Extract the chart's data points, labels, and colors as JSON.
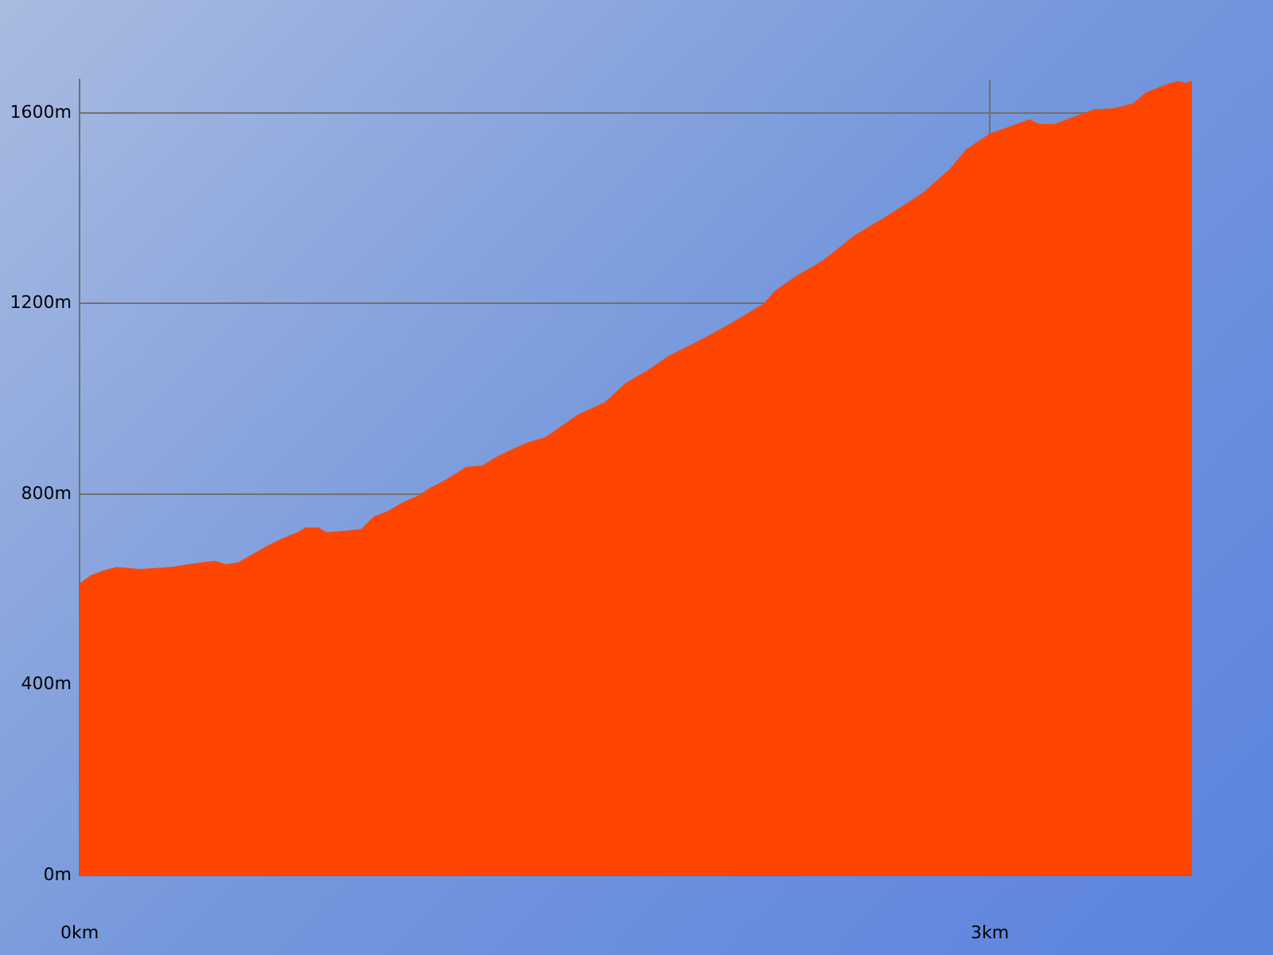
{
  "chart_data": {
    "type": "area",
    "x": [
      0,
      0.037,
      0.079,
      0.121,
      0.199,
      0.299,
      0.404,
      0.446,
      0.483,
      0.524,
      0.551,
      0.614,
      0.666,
      0.719,
      0.745,
      0.787,
      0.813,
      0.876,
      0.928,
      0.97,
      1.012,
      1.065,
      1.117,
      1.154,
      1.206,
      1.274,
      1.327,
      1.379,
      1.469,
      1.537,
      1.642,
      1.731,
      1.799,
      1.872,
      1.941,
      2.045,
      2.15,
      2.255,
      2.292,
      2.36,
      2.449,
      2.554,
      2.659,
      2.78,
      2.869,
      2.921,
      3.0,
      3.058,
      3.131,
      3.163,
      3.215,
      3.267,
      3.341,
      3.409,
      3.472,
      3.514,
      3.582,
      3.619,
      3.645,
      3.666
    ],
    "values": [
      613,
      630,
      640,
      647,
      643,
      647,
      657,
      660,
      653,
      657,
      667,
      690,
      707,
      720,
      730,
      730,
      720,
      723,
      727,
      753,
      763,
      783,
      797,
      813,
      830,
      857,
      860,
      880,
      907,
      920,
      967,
      993,
      1033,
      1060,
      1090,
      1123,
      1160,
      1200,
      1227,
      1257,
      1290,
      1343,
      1383,
      1433,
      1483,
      1523,
      1557,
      1570,
      1587,
      1577,
      1577,
      1590,
      1607,
      1610,
      1620,
      1643,
      1660,
      1667,
      1663,
      1667
    ],
    "color": "#ff4500",
    "xlim": [
      0,
      3.666
    ],
    "xticks": [
      {
        "value": 0,
        "label": "0km"
      },
      {
        "value": 3,
        "label": "3km"
      }
    ],
    "ylim": [
      0,
      1670
    ],
    "yticks": [
      {
        "value": 0,
        "label": "0m"
      },
      {
        "value": 400,
        "label": "400m"
      },
      {
        "value": 800,
        "label": "800m"
      },
      {
        "value": 1200,
        "label": "1200m"
      },
      {
        "value": 1600,
        "label": "1600m"
      }
    ],
    "grid": true
  }
}
